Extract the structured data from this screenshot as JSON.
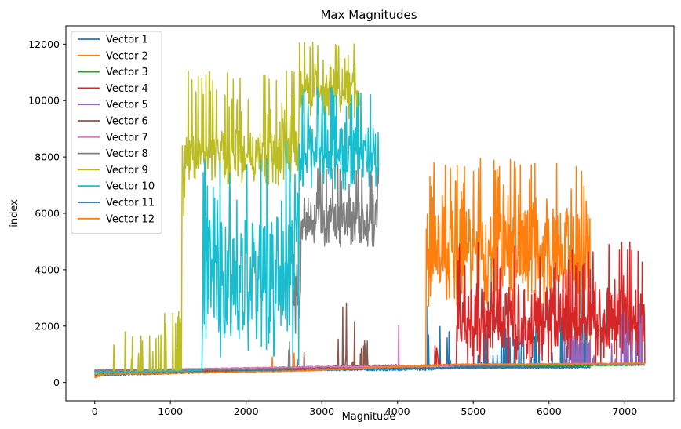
{
  "chart_data": {
    "type": "line",
    "title": "Max Magnitudes",
    "xlabel": "Magnitude",
    "ylabel": "index",
    "xlim": [
      -380,
      7650
    ],
    "ylim": [
      -650,
      12650
    ],
    "xticks": [
      0,
      1000,
      2000,
      3000,
      4000,
      5000,
      6000,
      7000
    ],
    "yticks": [
      0,
      2000,
      4000,
      6000,
      8000,
      10000,
      12000
    ],
    "grid": false,
    "legend_position": "upper-left",
    "series": [
      {
        "name": "Vector 1",
        "color": "#1f77b4",
        "n": 6550,
        "segments": [
          [
            0,
            250,
            25
          ],
          [
            2600,
            450,
            40
          ],
          [
            4400,
            480,
            60
          ],
          [
            4750,
            540,
            40
          ],
          [
            6550,
            560,
            40
          ]
        ],
        "spikes": [
          [
            4380,
            4420,
            3150
          ],
          [
            4480,
            4600,
            2750
          ],
          [
            4650,
            4700,
            2400
          ],
          [
            5000,
            6000,
            2100
          ],
          [
            6000,
            6540,
            2900
          ]
        ]
      },
      {
        "name": "Vector 2",
        "color": "#ff7f0e",
        "n": 6550,
        "segments": [
          [
            0,
            300,
            30
          ],
          [
            2600,
            470,
            30
          ],
          [
            4380,
            500,
            40
          ],
          [
            6550,
            540,
            40
          ]
        ],
        "spikes": [
          [
            2340,
            2360,
            900
          ],
          [
            2620,
            2640,
            1100
          ],
          [
            3600,
            3620,
            900
          ]
        ],
        "blocks": [
          [
            4380,
            6540,
            2400,
            4800,
            7950
          ]
        ]
      },
      {
        "name": "Vector 3",
        "color": "#2ca02c",
        "n": 7270,
        "segments": [
          [
            0,
            330,
            20
          ],
          [
            2600,
            440,
            20
          ],
          [
            4750,
            560,
            20
          ],
          [
            7270,
            620,
            20
          ]
        ],
        "spikes": []
      },
      {
        "name": "Vector 4",
        "color": "#d62728",
        "n": 7270,
        "segments": [
          [
            0,
            360,
            20
          ],
          [
            2600,
            480,
            20
          ],
          [
            4750,
            620,
            30
          ],
          [
            7270,
            680,
            30
          ]
        ],
        "spikes": [
          [
            4480,
            4560,
            1300
          ]
        ],
        "blocks": [
          [
            4780,
            7260,
            500,
            2300,
            5000
          ]
        ]
      },
      {
        "name": "Vector 5",
        "color": "#9467bd",
        "n": 7270,
        "segments": [
          [
            0,
            380,
            20
          ],
          [
            2600,
            500,
            20
          ],
          [
            4750,
            600,
            20
          ],
          [
            7270,
            660,
            20
          ]
        ],
        "spikes": [
          [
            6800,
            7250,
            3400
          ],
          [
            6200,
            6600,
            1800
          ]
        ]
      },
      {
        "name": "Vector 6",
        "color": "#8c564b",
        "n": 4000,
        "segments": [
          [
            0,
            400,
            20
          ],
          [
            2600,
            520,
            40
          ],
          [
            4000,
            600,
            40
          ]
        ],
        "spikes": [
          [
            2650,
            2800,
            1400
          ],
          [
            3200,
            3250,
            2100
          ],
          [
            3250,
            3350,
            3150
          ],
          [
            3400,
            3450,
            2200
          ],
          [
            3500,
            3600,
            1500
          ]
        ]
      },
      {
        "name": "Vector 7",
        "color": "#e377c2",
        "n": 4750,
        "segments": [
          [
            0,
            420,
            20
          ],
          [
            3000,
            560,
            20
          ],
          [
            4750,
            560,
            20
          ]
        ],
        "spikes": [
          [
            4000,
            4030,
            2650
          ]
        ]
      },
      {
        "name": "Vector 8",
        "color": "#7f7f7f",
        "n": 3750,
        "segments": [
          [
            0,
            430,
            20
          ],
          [
            2600,
            480,
            30
          ],
          [
            3750,
            520,
            30
          ]
        ],
        "spikes": [
          [
            2530,
            2600,
            1800
          ]
        ],
        "blocks": [
          [
            2620,
            2720,
            1700,
            3800,
            4600
          ],
          [
            2720,
            3750,
            4800,
            5800,
            7800
          ]
        ]
      },
      {
        "name": "Vector 9",
        "color": "#bcbd22",
        "n": 3500,
        "segments": [
          [
            0,
            330,
            20
          ],
          [
            3500,
            560,
            20
          ]
        ],
        "spikes": [
          [
            250,
            320,
            3450
          ],
          [
            400,
            900,
            1900
          ],
          [
            900,
            1150,
            2700
          ]
        ],
        "blocks": [
          [
            1150,
            1200,
            4500,
            7500,
            8400
          ],
          [
            1200,
            2700,
            7000,
            8200,
            11150
          ],
          [
            2700,
            3500,
            9300,
            10400,
            12100
          ]
        ]
      },
      {
        "name": "Vector 10",
        "color": "#17becf",
        "n": 3750,
        "segments": [
          [
            0,
            360,
            20
          ],
          [
            3750,
            500,
            20
          ]
        ],
        "spikes": [],
        "blocks": [
          [
            1420,
            2520,
            900,
            4000,
            8000
          ],
          [
            2520,
            2700,
            600,
            6000,
            8700
          ],
          [
            2700,
            3750,
            6800,
            8200,
            10500
          ]
        ]
      },
      {
        "name": "Vector 11",
        "color": "#1f77b4",
        "n": 6550,
        "segments": [
          [
            0,
            220,
            60
          ],
          [
            150,
            300,
            20
          ],
          [
            2600,
            430,
            20
          ],
          [
            4750,
            520,
            20
          ],
          [
            6550,
            530,
            20
          ]
        ],
        "spikes": []
      },
      {
        "name": "Vector 12",
        "color": "#ff7f0e",
        "n": 7270,
        "segments": [
          [
            0,
            200,
            50
          ],
          [
            150,
            290,
            20
          ],
          [
            2600,
            400,
            20
          ],
          [
            4750,
            640,
            20
          ],
          [
            7270,
            680,
            20
          ]
        ],
        "spikes": []
      }
    ]
  }
}
